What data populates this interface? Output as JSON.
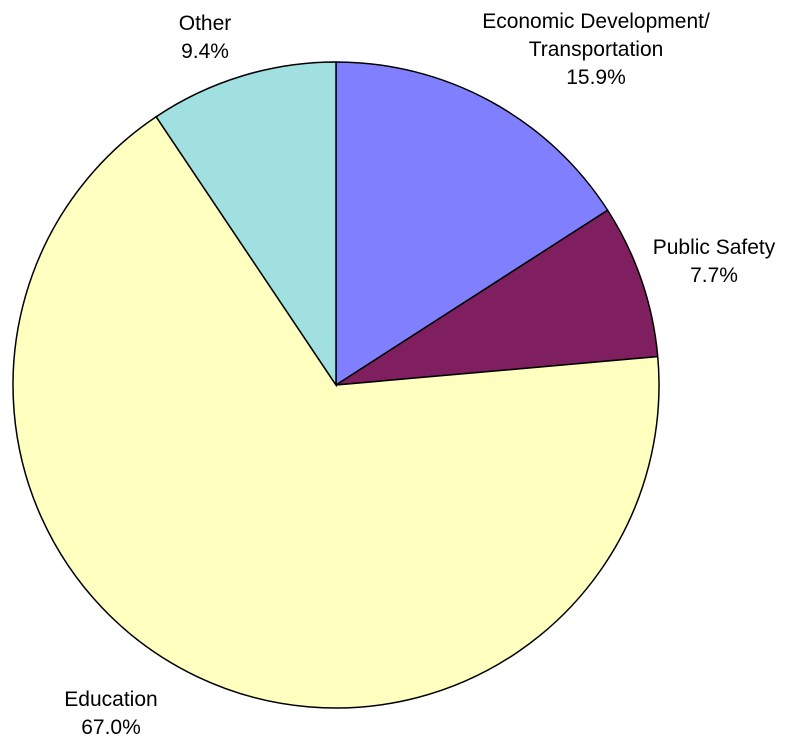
{
  "chart_data": {
    "type": "pie",
    "title": "",
    "slices": [
      {
        "label_lines": [
          "Economic Development/",
          "Transportation"
        ],
        "percent_label": "15.9%",
        "value": 15.9,
        "color": "#8080ff"
      },
      {
        "label_lines": [
          "Public Safety"
        ],
        "percent_label": "7.7%",
        "value": 7.7,
        "color": "#7f1f5f"
      },
      {
        "label_lines": [
          "Education"
        ],
        "percent_label": "67.0%",
        "value": 67.0,
        "color": "#ffffc0"
      },
      {
        "label_lines": [
          "Other"
        ],
        "percent_label": "9.4%",
        "value": 9.4,
        "color": "#a0e0e0"
      }
    ],
    "start": "12 o'clock",
    "direction": "clockwise",
    "legend": "none"
  }
}
